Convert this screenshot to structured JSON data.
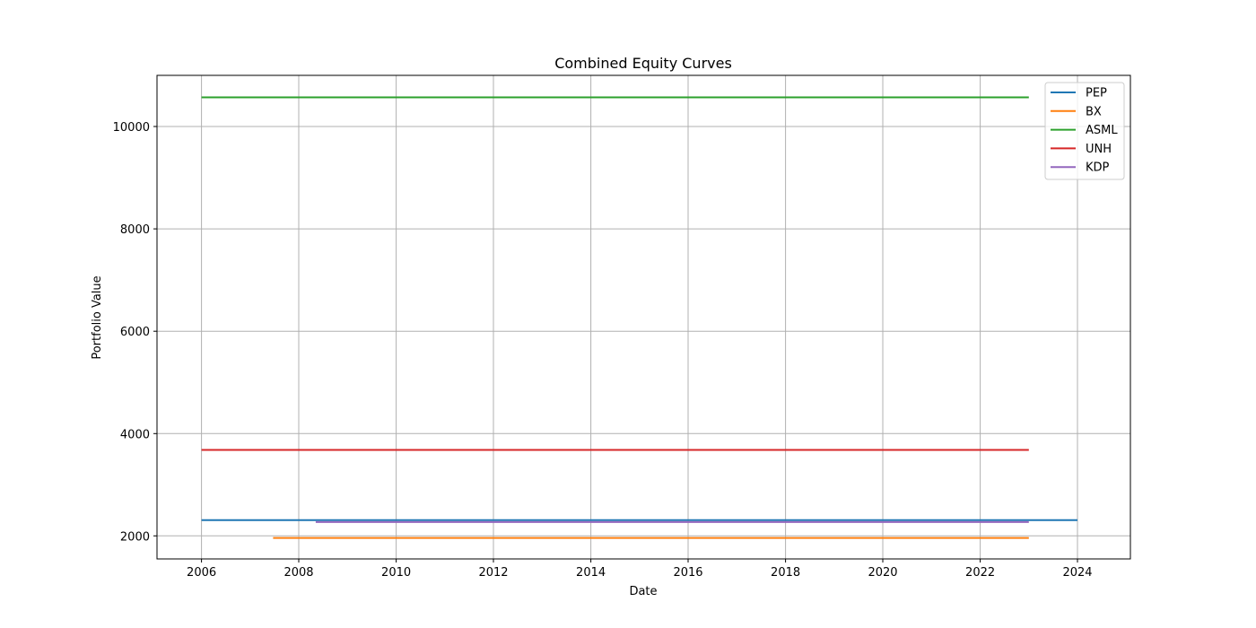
{
  "chart_data": {
    "type": "line",
    "title": "Combined Equity Curves",
    "xlabel": "Date",
    "ylabel": "Portfolio Value",
    "xlim": [
      "2005-02-01",
      "2025-02-01"
    ],
    "ylim": [
      1550,
      11000
    ],
    "x_ticks": [
      "2006",
      "2008",
      "2010",
      "2012",
      "2014",
      "2016",
      "2018",
      "2020",
      "2022",
      "2024"
    ],
    "y_ticks": [
      2000,
      4000,
      6000,
      8000,
      10000
    ],
    "grid": true,
    "legend_position": "top-right",
    "series": [
      {
        "name": "PEP",
        "color": "#1f77b4",
        "start": "2006-01-01",
        "end": "2024-01-01",
        "value": 2310
      },
      {
        "name": "BX",
        "color": "#ff7f0e",
        "start": "2007-06-22",
        "end": "2023-01-01",
        "value": 1960
      },
      {
        "name": "ASML",
        "color": "#2ca02c",
        "start": "2006-01-01",
        "end": "2023-01-01",
        "value": 10570
      },
      {
        "name": "UNH",
        "color": "#d62728",
        "start": "2006-01-01",
        "end": "2023-01-01",
        "value": 3680
      },
      {
        "name": "KDP",
        "color": "#9467bd",
        "start": "2008-05-07",
        "end": "2023-01-01",
        "value": 2270
      }
    ]
  }
}
